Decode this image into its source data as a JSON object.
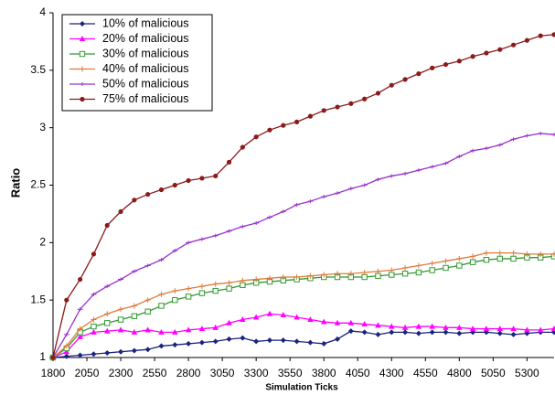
{
  "chart_data": {
    "type": "line",
    "x_label": "Simulation Ticks",
    "y_label": "Ratio",
    "x": [
      1800,
      1900,
      2000,
      2100,
      2200,
      2300,
      2400,
      2500,
      2600,
      2700,
      2800,
      2900,
      3000,
      3100,
      3200,
      3300,
      3400,
      3500,
      3600,
      3700,
      3800,
      3900,
      4000,
      4100,
      4200,
      4300,
      4400,
      4500,
      4600,
      4700,
      4800,
      4900,
      5000,
      5100,
      5200,
      5300,
      5400,
      5500
    ],
    "xlim": [
      1800,
      5500
    ],
    "xticks": [
      1800,
      2050,
      2300,
      2550,
      2800,
      3050,
      3300,
      3550,
      3800,
      4050,
      4300,
      4550,
      4800,
      5050,
      5300
    ],
    "ylim": [
      1,
      4
    ],
    "yticks": [
      1,
      1.5,
      2,
      2.5,
      3,
      3.5,
      4
    ],
    "grid": false,
    "legend": "upper left",
    "series": [
      {
        "name": "10% of malicious",
        "color": "#1a237e",
        "marker": "diamond",
        "values": [
          1.0,
          1.01,
          1.02,
          1.03,
          1.04,
          1.05,
          1.06,
          1.07,
          1.1,
          1.11,
          1.12,
          1.13,
          1.14,
          1.16,
          1.17,
          1.14,
          1.15,
          1.15,
          1.14,
          1.13,
          1.12,
          1.16,
          1.23,
          1.22,
          1.2,
          1.22,
          1.22,
          1.21,
          1.22,
          1.22,
          1.21,
          1.22,
          1.22,
          1.21,
          1.2,
          1.21,
          1.22,
          1.22
        ]
      },
      {
        "name": "20% of malicious",
        "color": "#ff00ff",
        "marker": "triangle",
        "values": [
          1.0,
          1.05,
          1.18,
          1.22,
          1.23,
          1.24,
          1.22,
          1.24,
          1.22,
          1.22,
          1.24,
          1.25,
          1.26,
          1.3,
          1.33,
          1.35,
          1.38,
          1.37,
          1.35,
          1.33,
          1.31,
          1.3,
          1.3,
          1.29,
          1.28,
          1.27,
          1.26,
          1.27,
          1.27,
          1.26,
          1.26,
          1.25,
          1.25,
          1.25,
          1.25,
          1.24,
          1.24,
          1.25
        ]
      },
      {
        "name": "30% of malicious",
        "color": "#339933",
        "marker": "square",
        "values": [
          1.0,
          1.08,
          1.22,
          1.27,
          1.3,
          1.33,
          1.36,
          1.4,
          1.45,
          1.5,
          1.53,
          1.56,
          1.58,
          1.6,
          1.63,
          1.65,
          1.66,
          1.67,
          1.68,
          1.69,
          1.7,
          1.7,
          1.7,
          1.7,
          1.71,
          1.72,
          1.73,
          1.74,
          1.76,
          1.78,
          1.8,
          1.83,
          1.85,
          1.86,
          1.86,
          1.87,
          1.87,
          1.88
        ]
      },
      {
        "name": "40% of malicious",
        "color": "#e07b39",
        "marker": "cross",
        "values": [
          1.0,
          1.1,
          1.25,
          1.33,
          1.38,
          1.42,
          1.45,
          1.5,
          1.55,
          1.58,
          1.6,
          1.62,
          1.64,
          1.65,
          1.67,
          1.68,
          1.69,
          1.7,
          1.7,
          1.71,
          1.72,
          1.73,
          1.73,
          1.74,
          1.75,
          1.76,
          1.78,
          1.8,
          1.82,
          1.84,
          1.86,
          1.88,
          1.91,
          1.91,
          1.91,
          1.9,
          1.9,
          1.9
        ]
      },
      {
        "name": "50% of malicious",
        "color": "#9933cc",
        "marker": "dash",
        "values": [
          1.0,
          1.2,
          1.42,
          1.55,
          1.62,
          1.68,
          1.75,
          1.8,
          1.85,
          1.93,
          2.0,
          2.03,
          2.06,
          2.1,
          2.14,
          2.17,
          2.22,
          2.27,
          2.33,
          2.36,
          2.4,
          2.43,
          2.47,
          2.5,
          2.55,
          2.58,
          2.6,
          2.63,
          2.66,
          2.69,
          2.75,
          2.8,
          2.82,
          2.85,
          2.9,
          2.93,
          2.95,
          2.94
        ]
      },
      {
        "name": "75% of malicious",
        "color": "#8b1a1a",
        "marker": "circle",
        "values": [
          1.0,
          1.5,
          1.68,
          1.9,
          2.15,
          2.27,
          2.37,
          2.42,
          2.46,
          2.5,
          2.54,
          2.56,
          2.58,
          2.7,
          2.83,
          2.92,
          2.98,
          3.02,
          3.05,
          3.1,
          3.15,
          3.18,
          3.21,
          3.25,
          3.3,
          3.37,
          3.42,
          3.47,
          3.52,
          3.55,
          3.58,
          3.62,
          3.65,
          3.68,
          3.72,
          3.76,
          3.8,
          3.81
        ]
      }
    ]
  }
}
